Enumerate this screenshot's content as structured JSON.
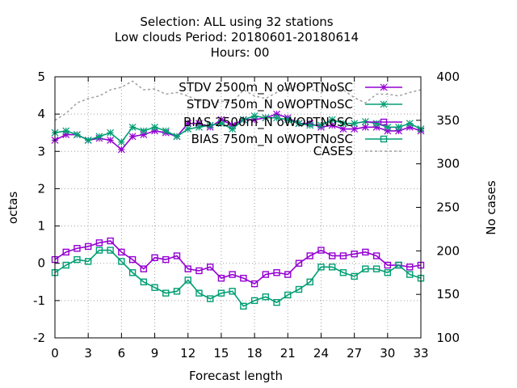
{
  "title_lines": [
    "Selection: ALL using    32 stations",
    "Low clouds   Period: 20180601-20180614",
    "Hours:  00"
  ],
  "colors": {
    "stdv_2500": "#9400d3",
    "stdv_750": "#009e73",
    "bias_2500": "#9400d3",
    "bias_750": "#009e73",
    "cases": "#a0a0a0",
    "grid": "#a0a0a0"
  },
  "chart_data": {
    "type": "line",
    "xlabel": "Forecast length",
    "ylabel": "octas",
    "y2label": "No cases",
    "xlim": [
      0,
      33
    ],
    "ylim": [
      -2,
      5
    ],
    "y2lim": [
      100,
      400
    ],
    "grid": true,
    "legend_position": "top-right",
    "x_ticks": [
      "0",
      "3",
      "6",
      "9",
      "12",
      "15",
      "18",
      "21",
      "24",
      "27",
      "30",
      "33"
    ],
    "y_ticks": [
      "-2",
      "-1",
      "0",
      "1",
      "2",
      "3",
      "4",
      "5"
    ],
    "y2_ticks": [
      "100",
      "150",
      "200",
      "250",
      "300",
      "350",
      "400"
    ],
    "x": [
      0,
      1,
      2,
      3,
      4,
      5,
      6,
      7,
      8,
      9,
      10,
      11,
      12,
      13,
      14,
      15,
      16,
      17,
      18,
      19,
      20,
      21,
      22,
      23,
      24,
      25,
      26,
      27,
      28,
      29,
      30,
      31,
      32,
      33
    ],
    "series": [
      {
        "name": "STDV 2500m_N oWOPTNoSC",
        "key": "stdv_2500",
        "axis": "y",
        "marker": "star",
        "values": [
          3.3,
          3.45,
          3.45,
          3.3,
          3.35,
          3.3,
          3.05,
          3.4,
          3.45,
          3.55,
          3.5,
          3.4,
          3.75,
          3.75,
          3.65,
          3.85,
          3.7,
          3.85,
          3.85,
          3.9,
          4.0,
          3.9,
          3.75,
          3.75,
          3.65,
          3.7,
          3.6,
          3.6,
          3.65,
          3.65,
          3.55,
          3.55,
          3.65,
          3.55
        ]
      },
      {
        "name": "STDV 750m_N oWOPTNoSC",
        "key": "stdv_750",
        "axis": "y",
        "marker": "star",
        "values": [
          3.5,
          3.55,
          3.45,
          3.3,
          3.4,
          3.5,
          3.25,
          3.65,
          3.55,
          3.65,
          3.55,
          3.4,
          3.6,
          3.65,
          3.7,
          3.75,
          3.6,
          3.85,
          3.95,
          3.9,
          3.9,
          3.85,
          3.75,
          3.7,
          3.7,
          3.85,
          3.75,
          3.75,
          3.8,
          3.75,
          3.65,
          3.65,
          3.75,
          3.6
        ]
      },
      {
        "name": "BIAS 2500m_N oWOPTNoSC",
        "key": "bias_2500",
        "axis": "y",
        "marker": "square",
        "values": [
          0.1,
          0.3,
          0.4,
          0.45,
          0.55,
          0.6,
          0.3,
          0.1,
          -0.15,
          0.15,
          0.1,
          0.2,
          -0.15,
          -0.2,
          -0.1,
          -0.4,
          -0.3,
          -0.4,
          -0.55,
          -0.3,
          -0.25,
          -0.3,
          0.0,
          0.2,
          0.35,
          0.2,
          0.2,
          0.25,
          0.3,
          0.2,
          -0.05,
          -0.05,
          -0.1,
          -0.05
        ]
      },
      {
        "name": "BIAS 750m_N oWOPTNoSC",
        "key": "bias_750",
        "axis": "y",
        "marker": "square",
        "values": [
          -0.25,
          -0.05,
          0.1,
          0.05,
          0.35,
          0.35,
          0.05,
          -0.25,
          -0.5,
          -0.65,
          -0.8,
          -0.75,
          -0.45,
          -0.8,
          -0.95,
          -0.8,
          -0.75,
          -1.15,
          -1.0,
          -0.9,
          -1.05,
          -0.85,
          -0.7,
          -0.5,
          -0.1,
          -0.1,
          -0.25,
          -0.35,
          -0.15,
          -0.15,
          -0.25,
          -0.05,
          -0.3,
          -0.4
        ]
      },
      {
        "name": "CASES",
        "key": "cases",
        "axis": "y2",
        "marker": "none",
        "values": [
          350,
          358,
          370,
          375,
          378,
          385,
          388,
          395,
          385,
          386,
          380,
          382,
          378,
          372,
          368,
          372,
          370,
          385,
          378,
          375,
          382,
          386,
          390,
          386,
          382,
          388,
          385,
          376,
          370,
          380,
          380,
          378,
          382,
          385
        ]
      }
    ]
  }
}
